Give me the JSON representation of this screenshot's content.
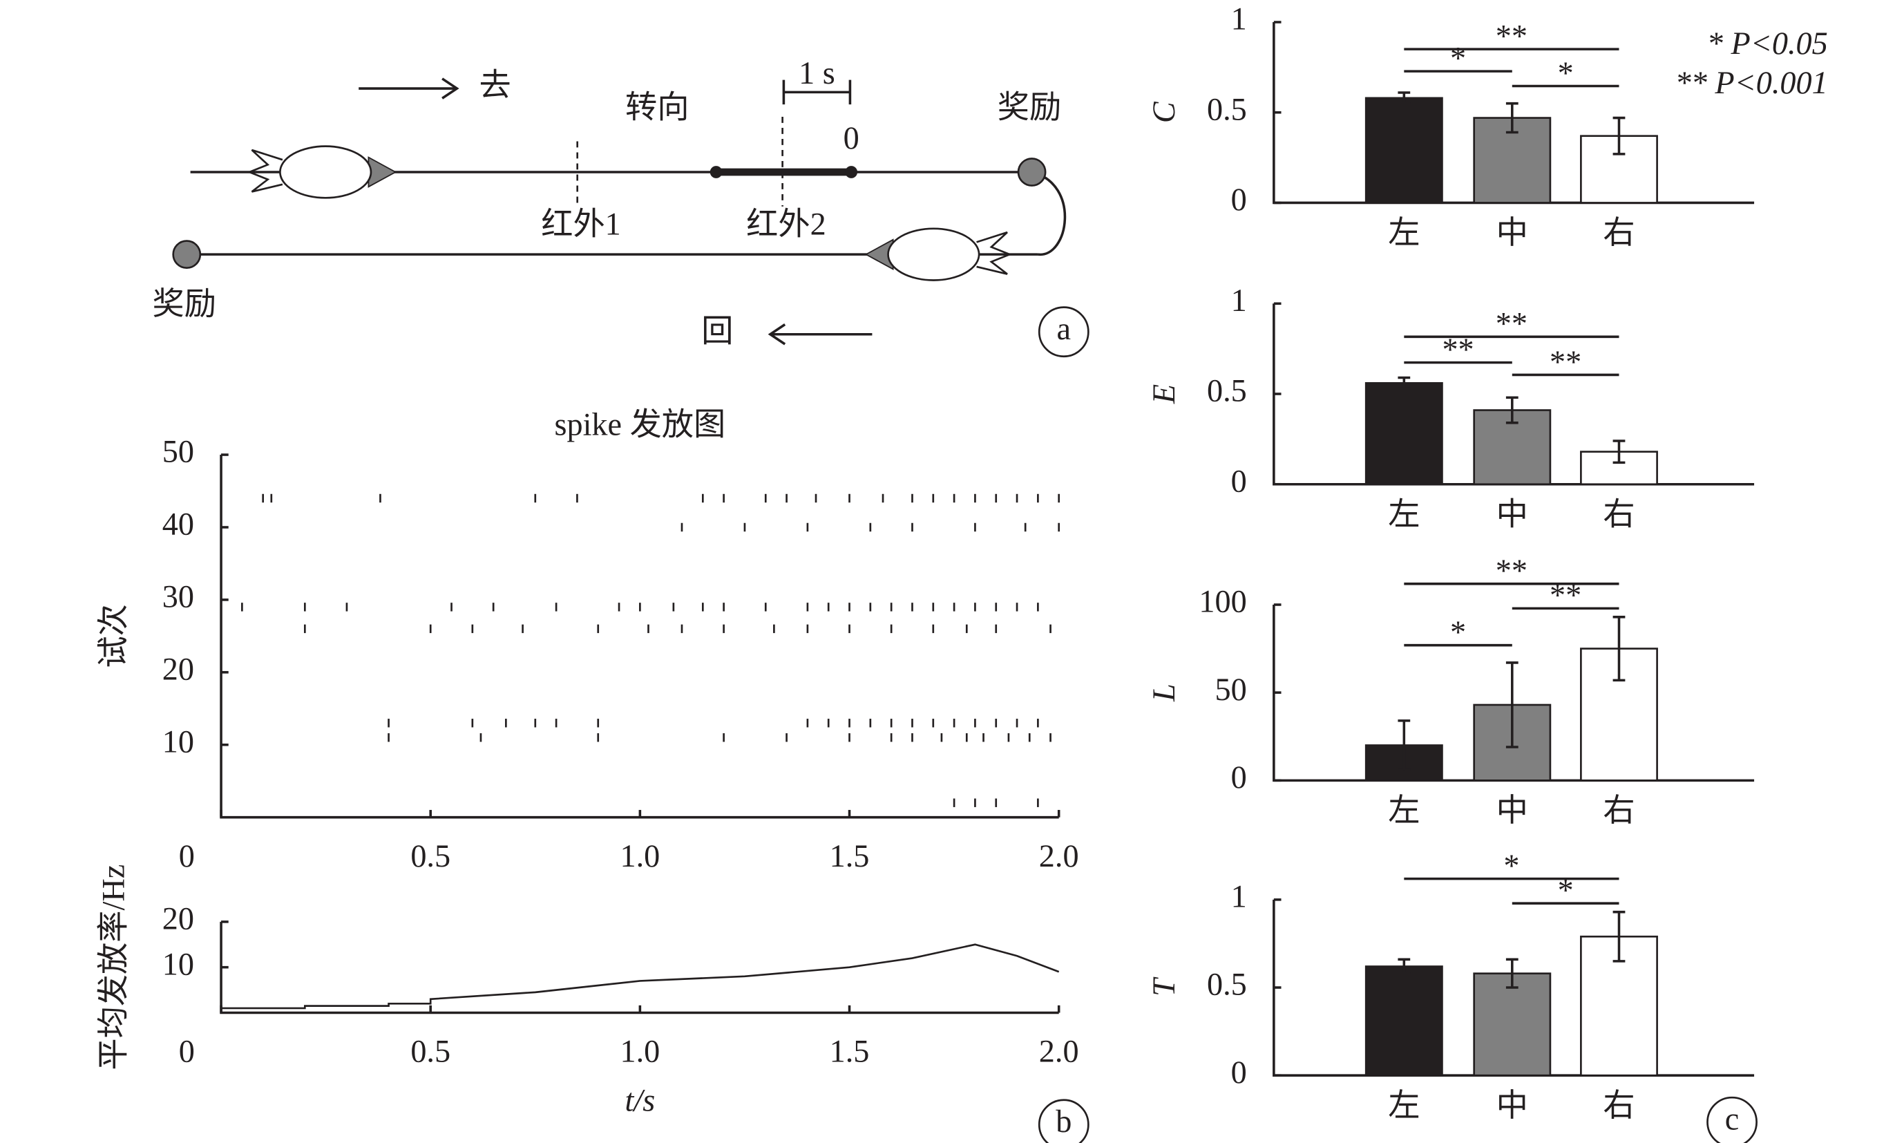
{
  "diagram": {
    "go": "去",
    "turn": "转向",
    "time_scale": "1 s",
    "zero": "0",
    "reward_right": "奖励",
    "ir1": "红外1",
    "ir2": "红外2",
    "reward_left": "奖励",
    "back": "回"
  },
  "panel_labels": [
    "a",
    "b",
    "c"
  ],
  "significance_legend": [
    "* P<0.05",
    "** P<0.001"
  ],
  "chart_data": [
    {
      "type": "raster",
      "title": "spike 发放图",
      "ylabel": "试次",
      "x": [
        0.1,
        0.12,
        0.38,
        0.75,
        0.85,
        1.15,
        1.2,
        1.3,
        1.35,
        1.42,
        1.5,
        1.58,
        1.65,
        1.7,
        1.75,
        1.8,
        1.85,
        1.9,
        1.95,
        2.0,
        0.05,
        0.2,
        0.3,
        0.55,
        0.65,
        0.8,
        0.95,
        1.0,
        1.08,
        1.15,
        1.2,
        1.3,
        1.4,
        1.45,
        1.5,
        1.55,
        1.6,
        1.65,
        1.7,
        1.75,
        1.8,
        1.85,
        1.9,
        1.95,
        0.2,
        0.5,
        0.6,
        0.72,
        0.9,
        1.02,
        1.1,
        1.2,
        1.32,
        1.4,
        1.5,
        1.6,
        1.7,
        1.78,
        1.85,
        1.98,
        0.4,
        0.6,
        0.68,
        0.75,
        0.8,
        0.9,
        1.4,
        1.45,
        1.5,
        1.55,
        1.6,
        1.65,
        1.7,
        1.75,
        1.8,
        1.85,
        1.9,
        1.95,
        0.4,
        0.62,
        0.9,
        1.2,
        1.35,
        1.5,
        1.6,
        1.65,
        1.72,
        1.78,
        1.82,
        1.88,
        1.93,
        1.98,
        1.1,
        1.25,
        1.4,
        1.55,
        1.65,
        1.8,
        1.92,
        2.0,
        1.75,
        1.8,
        1.85,
        1.95
      ],
      "y": [
        44,
        44,
        44,
        44,
        44,
        44,
        44,
        44,
        44,
        44,
        44,
        44,
        44,
        44,
        44,
        44,
        44,
        44,
        44,
        44,
        29,
        29,
        29,
        29,
        29,
        29,
        29,
        29,
        29,
        29,
        29,
        29,
        29,
        29,
        29,
        29,
        29,
        29,
        29,
        29,
        29,
        29,
        29,
        29,
        26,
        26,
        26,
        26,
        26,
        26,
        26,
        26,
        26,
        26,
        26,
        26,
        26,
        26,
        26,
        26,
        13,
        13,
        13,
        13,
        13,
        13,
        13,
        13,
        13,
        13,
        13,
        13,
        13,
        13,
        13,
        13,
        13,
        13,
        11,
        11,
        11,
        11,
        11,
        11,
        11,
        11,
        11,
        11,
        11,
        11,
        11,
        11,
        40,
        40,
        40,
        40,
        40,
        40,
        40,
        40,
        2,
        2,
        2,
        2
      ],
      "xlim": [
        0,
        2
      ],
      "xticks": [
        0,
        0.5,
        {
          "value": 1,
          "label": "1.0"
        },
        1.5,
        {
          "value": 2,
          "label": "2.0"
        }
      ],
      "ylim": [
        0,
        50
      ],
      "yticks": [
        10,
        20,
        30,
        40,
        50
      ],
      "color": "#231f20"
    },
    {
      "type": "line",
      "ylabel": "平均发放率/Hz",
      "xlabel": "t/s",
      "x": [
        0,
        0.2,
        0.2,
        0.4,
        0.4,
        0.5,
        0.5,
        0.75,
        1.0,
        1.25,
        1.5,
        1.65,
        1.8,
        1.9,
        2.0
      ],
      "values": [
        1,
        1,
        1.5,
        1.5,
        2,
        2,
        3,
        4.5,
        7,
        8,
        10,
        12,
        15,
        12.5,
        9
      ],
      "xlim": [
        0,
        2
      ],
      "xticks": [
        0,
        0.5,
        {
          "value": 1,
          "label": "1.0"
        },
        1.5,
        {
          "value": 2,
          "label": "2.0"
        }
      ],
      "ylim": [
        0,
        20
      ],
      "yticks": [
        10,
        20
      ],
      "color": "#231f20"
    },
    {
      "type": "bar",
      "ylabel": "C",
      "categories": [
        "左",
        "中",
        "右"
      ],
      "values": [
        0.58,
        0.47,
        0.37
      ],
      "errors": [
        0.03,
        0.08,
        0.1
      ],
      "colors": [
        "#231f20",
        "#808080",
        "#ffffff"
      ],
      "ylim": [
        0,
        1
      ],
      "yticks": [
        0,
        0.5,
        1
      ],
      "significance": [
        {
          "label": "**",
          "from": 0,
          "to": 2
        },
        {
          "label": "*",
          "from": 0,
          "to": 1
        },
        {
          "label": "*",
          "from": 1,
          "to": 2
        }
      ]
    },
    {
      "type": "bar",
      "ylabel": "E",
      "categories": [
        "左",
        "中",
        "右"
      ],
      "values": [
        0.56,
        0.41,
        0.18
      ],
      "errors": [
        0.03,
        0.07,
        0.06
      ],
      "colors": [
        "#231f20",
        "#808080",
        "#ffffff"
      ],
      "ylim": [
        0,
        1
      ],
      "yticks": [
        0,
        0.5,
        1
      ],
      "significance": [
        {
          "label": "**",
          "from": 0,
          "to": 2
        },
        {
          "label": "**",
          "from": 0,
          "to": 1
        },
        {
          "label": "**",
          "from": 1,
          "to": 2
        }
      ]
    },
    {
      "type": "bar",
      "ylabel": "L",
      "categories": [
        "左",
        "中",
        "右"
      ],
      "values": [
        20,
        43,
        75
      ],
      "errors": [
        14,
        24,
        18
      ],
      "colors": [
        "#231f20",
        "#808080",
        "#ffffff"
      ],
      "ylim": [
        0,
        100
      ],
      "yticks": [
        0,
        50,
        100
      ],
      "significance": [
        {
          "label": "**",
          "from": 0,
          "to": 2
        },
        {
          "label": "**",
          "from": 1,
          "to": 2
        },
        {
          "label": "*",
          "from": 0,
          "to": 1
        }
      ]
    },
    {
      "type": "bar",
      "ylabel": "T",
      "categories": [
        "左",
        "中",
        "右"
      ],
      "values": [
        0.62,
        0.58,
        0.79
      ],
      "errors": [
        0.04,
        0.08,
        0.14
      ],
      "colors": [
        "#231f20",
        "#808080",
        "#ffffff"
      ],
      "ylim": [
        0,
        1
      ],
      "yticks": [
        0,
        0.5,
        1
      ],
      "significance": [
        {
          "label": "*",
          "from": 0,
          "to": 2
        },
        {
          "label": "*",
          "from": 1,
          "to": 2
        }
      ]
    }
  ]
}
